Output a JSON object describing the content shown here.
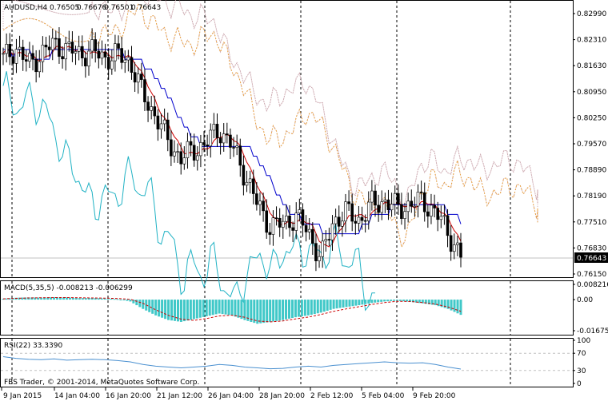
{
  "window": {
    "copyright": "FBS Trader, © 2001-2014, MetaQuotes Software Corp."
  },
  "main": {
    "symbol_label": "AUDUSD,H4",
    "ohlc": [
      "0.76505",
      "0.76676",
      "0.76501",
      "0.76643"
    ],
    "current_price_label": "0.76643",
    "ylim": [
      0.7615,
      0.8299
    ],
    "yticks": [
      "0.82990",
      "0.82310",
      "0.81630",
      "0.80950",
      "0.80250",
      "0.79570",
      "0.78890",
      "0.78190",
      "0.77510",
      "0.76830",
      "0.76150"
    ],
    "current_price": 0.76643
  },
  "macd": {
    "label": "MACD(5,35,5) -0.008213 -0.006299",
    "yticks": [
      "0.008216",
      "0.00",
      "-0.016756"
    ],
    "ylim": [
      -0.016756,
      0.008216
    ]
  },
  "rsi": {
    "label": "RSI(22) 33.3390",
    "yticks": [
      "100",
      "70",
      "30",
      "0"
    ],
    "levels": [
      70,
      30
    ],
    "ylim": [
      0,
      100
    ]
  },
  "xaxis": {
    "ticks": [
      "9 Jan 2015",
      "14 Jan 04:00",
      "16 Jan 20:00",
      "21 Jan 12:00",
      "26 Jan 04:00",
      "28 Jan 20:00",
      "2 Feb 12:00",
      "5 Feb 04:00",
      "9 Feb 20:00"
    ]
  },
  "colors": {
    "candle": "#000000",
    "tenkan": "#cc0000",
    "kijun": "#0000cc",
    "chikou": "#20b2c4",
    "senkou_a": "#e8a040",
    "senkou_b": "#c8a0a8",
    "macd_hist": "#40c8c8",
    "macd_signal": "#cc0000",
    "rsi_line": "#4a90d0",
    "grid": "#000000"
  },
  "chart_data": [
    {
      "type": "candlestick",
      "title": "AUDUSD,H4",
      "x": [
        "9 Jan 2015",
        "14 Jan 04:00",
        "16 Jan 20:00",
        "21 Jan 12:00",
        "26 Jan 04:00",
        "28 Jan 20:00",
        "2 Feb 12:00",
        "5 Feb 04:00",
        "9 Feb 20:00"
      ],
      "close_path": [
        0.8175,
        0.8205,
        0.816,
        0.819,
        0.8215,
        0.82,
        0.819,
        0.8195,
        0.818,
        0.8185,
        0.817,
        0.808,
        0.803,
        0.796,
        0.792,
        0.794,
        0.796,
        0.7995,
        0.795,
        0.788,
        0.78,
        0.7745,
        0.775,
        0.777,
        0.773,
        0.766,
        0.776,
        0.778,
        0.776,
        0.78,
        0.781,
        0.779,
        0.78,
        0.781,
        0.778,
        0.773,
        0.7664
      ],
      "ylim": [
        0.7615,
        0.8299
      ],
      "last_close": 0.76643,
      "ohlc_last": {
        "open": 0.76505,
        "high": 0.76676,
        "low": 0.76501,
        "close": 0.76643
      }
    },
    {
      "type": "bar",
      "title": "MACD(5,35,5) -0.008213 -0.006299",
      "histogram": [
        0.0005,
        0.001,
        0.0012,
        0.0011,
        0.0013,
        0.0012,
        0.0008,
        0.0009,
        0.0006,
        0.0003,
        -0.001,
        -0.005,
        -0.0085,
        -0.011,
        -0.012,
        -0.0105,
        -0.009,
        -0.0075,
        -0.0085,
        -0.011,
        -0.013,
        -0.012,
        -0.011,
        -0.0095,
        -0.0085,
        -0.007,
        -0.005,
        -0.004,
        -0.003,
        -0.0018,
        -0.001,
        -0.0006,
        -0.0012,
        -0.002,
        -0.003,
        -0.005,
        -0.0082
      ],
      "signal": [
        0.0004,
        0.0007,
        0.0009,
        0.001,
        0.0011,
        0.0011,
        0.001,
        0.0009,
        0.0008,
        0.0006,
        0.0002,
        -0.002,
        -0.0055,
        -0.0085,
        -0.0105,
        -0.0112,
        -0.0102,
        -0.0088,
        -0.0084,
        -0.0095,
        -0.0115,
        -0.012,
        -0.0115,
        -0.0104,
        -0.0094,
        -0.008,
        -0.0063,
        -0.005,
        -0.0038,
        -0.0026,
        -0.0016,
        -0.0009,
        -0.001,
        -0.0016,
        -0.0024,
        -0.004,
        -0.0063
      ],
      "ylim": [
        -0.016756,
        0.008216
      ]
    },
    {
      "type": "line",
      "title": "RSI(22) 33.3390",
      "values": [
        62,
        58,
        56,
        55,
        57,
        54,
        55,
        56,
        55,
        53,
        50,
        44,
        40,
        38,
        36,
        38,
        40,
        44,
        42,
        38,
        36,
        34,
        35,
        38,
        40,
        38,
        42,
        44,
        46,
        48,
        50,
        48,
        47,
        48,
        44,
        38,
        33.339
      ],
      "levels": [
        70,
        30
      ],
      "ylim": [
        0,
        100
      ]
    }
  ]
}
